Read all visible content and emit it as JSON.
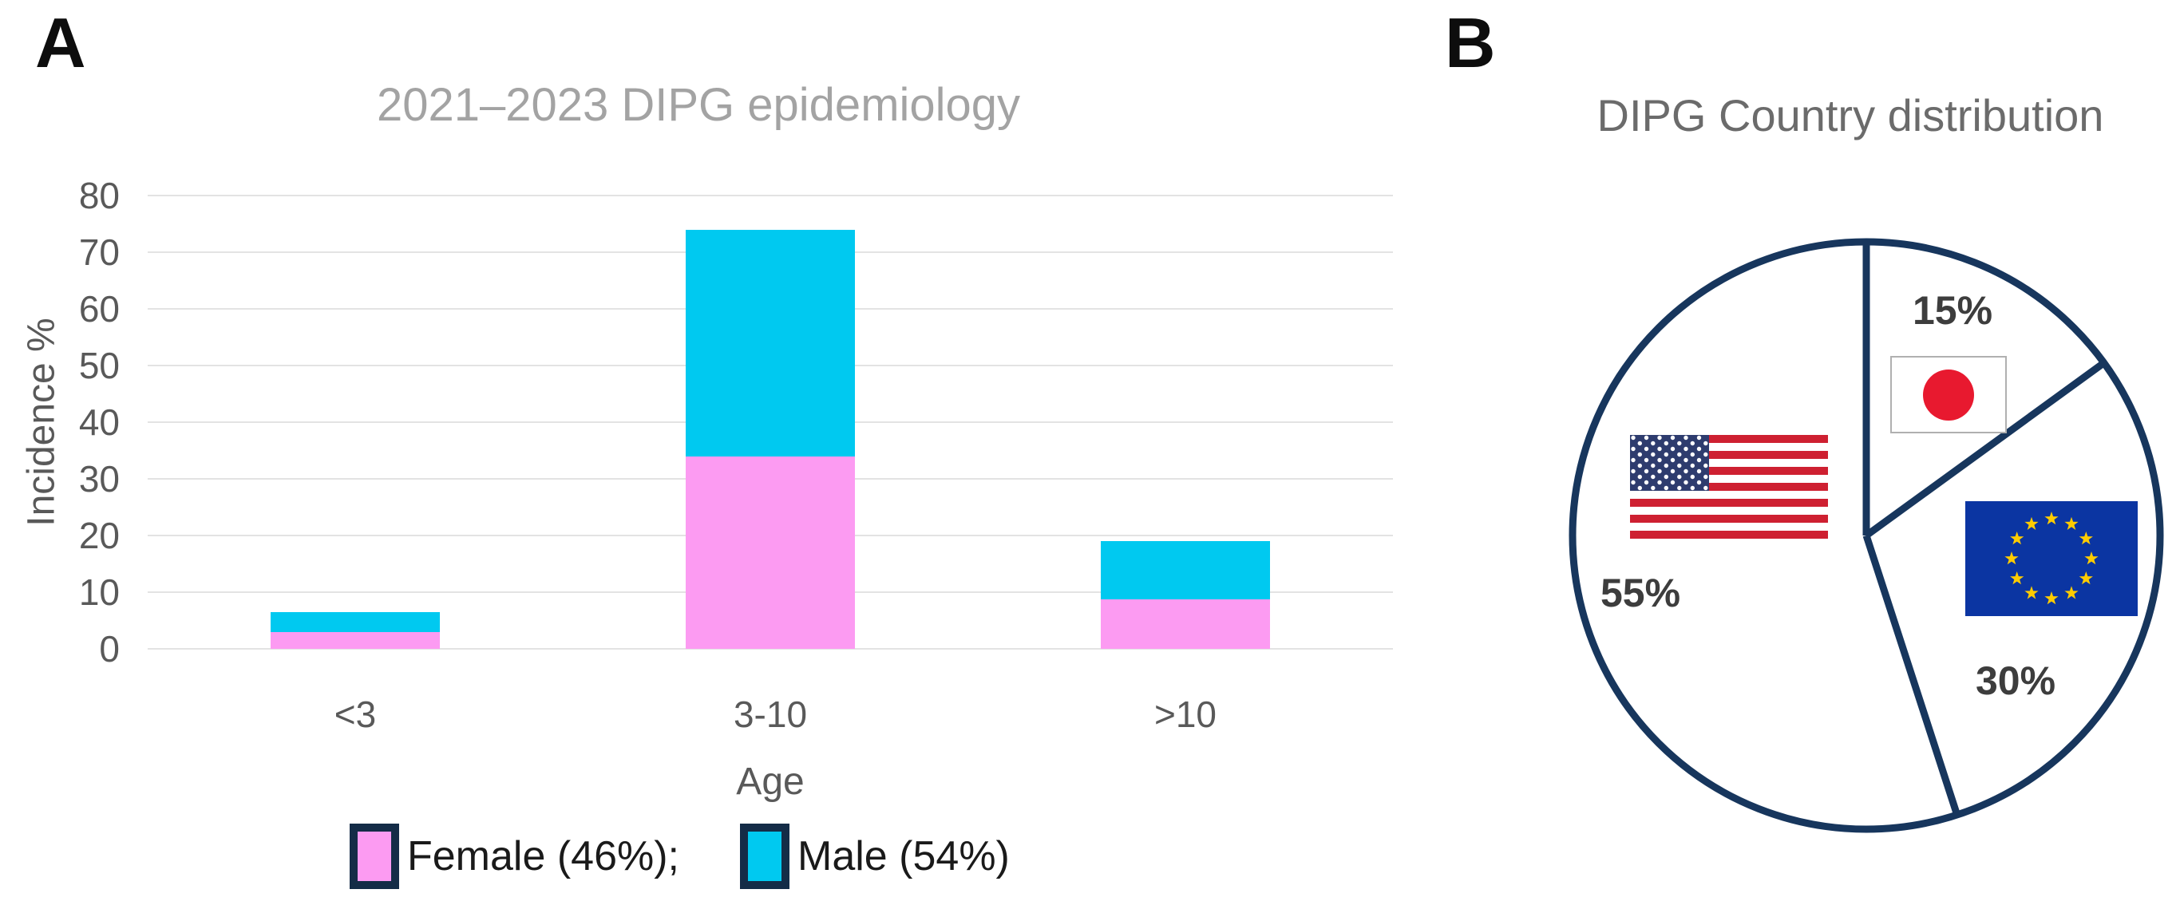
{
  "figure": {
    "panel_a": {
      "label": "A",
      "title": "2021–2023 DIPG epidemiology",
      "y_axis_label": "Incidence %",
      "x_axis_label": "Age",
      "legend": {
        "female_label": "Female (46%);",
        "male_label": "Male (54%)"
      }
    },
    "panel_b": {
      "label": "B",
      "title": "DIPG Country distribution"
    }
  },
  "chart_data": [
    {
      "type": "bar",
      "subtype": "stacked",
      "title": "2021–2023 DIPG epidemiology",
      "categories": [
        "<3",
        "3-10",
        ">10"
      ],
      "series": [
        {
          "name": "Female (46%)",
          "color": "#FC9BF2",
          "values": [
            3,
            34,
            8.7
          ]
        },
        {
          "name": "Male (54%)",
          "color": "#00C9F0",
          "values": [
            3.5,
            40,
            10.3
          ]
        }
      ],
      "stack_totals": [
        6.5,
        74,
        19
      ],
      "xlabel": "Age",
      "ylabel": "Incidence %",
      "ylim": [
        0,
        80
      ],
      "ytick_step": 10,
      "grid": true,
      "legend_position": "bottom"
    },
    {
      "type": "pie",
      "title": "DIPG Country distribution",
      "slices": [
        {
          "label": "Japan",
          "value": 15,
          "display": "15%",
          "flag": "japan-flag"
        },
        {
          "label": "European Union",
          "value": 30,
          "display": "30%",
          "flag": "eu-flag"
        },
        {
          "label": "USA",
          "value": 55,
          "display": "55%",
          "flag": "us-flag"
        }
      ],
      "start_angle_deg": 0,
      "direction": "clockwise",
      "style": "outline-only-white-fill",
      "legend_position": "none"
    }
  ],
  "colors": {
    "pie_outline": "#17365D",
    "female_pink": "#FC9BF2",
    "male_cyan": "#00C9F0",
    "legend_swatch_border": "#142C47",
    "gridline": "#E3E3E3",
    "axis_text": "#595959",
    "title_a_gray": "#A3A3A3",
    "title_b_gray": "#6B6B6B",
    "pct_text": "#3D3D3D",
    "us_red": "#CE2031",
    "us_canton_navy": "#2E3C6E",
    "japan_red": "#E8192F",
    "japan_border": "#B0B0B0",
    "eu_blue": "#0B35A2",
    "eu_star_gold": "#FFCC00"
  }
}
